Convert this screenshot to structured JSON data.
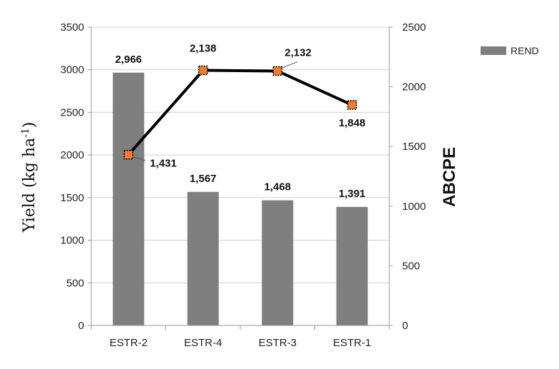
{
  "chart_data": {
    "type": "bar",
    "categories": [
      "ESTR-2",
      "ESTR-4",
      "ESTR-3",
      "ESTR-1"
    ],
    "series": [
      {
        "name": "REND",
        "type": "bar",
        "axis": "left",
        "values": [
          2966,
          1567,
          1468,
          1391
        ],
        "labels": [
          "2,966",
          "1,567",
          "1,468",
          "1,391"
        ],
        "color": "#7f7f7f"
      },
      {
        "type": "line",
        "axis": "right",
        "values": [
          1431,
          2138,
          2132,
          1848
        ],
        "labels": [
          "1,431",
          "2,138",
          "2,132",
          "1,848"
        ],
        "line_color": "#000000",
        "marker_color": "#ed7d31"
      }
    ],
    "left_axis": {
      "label": "Yield (kg ha",
      "label_superscript": "-1",
      "label_close": ")",
      "ylim": [
        0,
        3500
      ],
      "ticks": [
        0,
        500,
        1000,
        1500,
        2000,
        2500,
        3000,
        3500
      ]
    },
    "right_axis": {
      "label": "ABCPE",
      "ylim": [
        0,
        2500
      ],
      "ticks": [
        0,
        500,
        1000,
        1500,
        2000,
        2500
      ]
    },
    "grid": true,
    "legend": {
      "position": "top-right",
      "entries": [
        "REND"
      ]
    }
  }
}
